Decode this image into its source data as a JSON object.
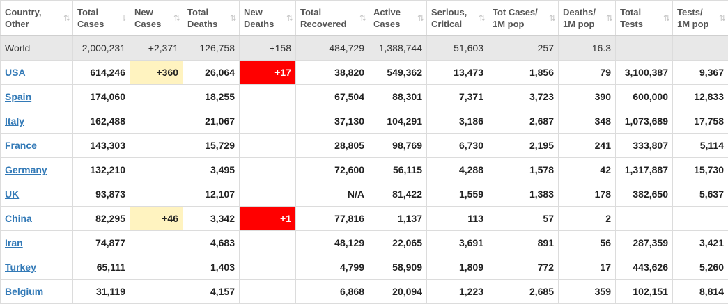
{
  "headers": [
    {
      "line1": "Country,",
      "line2": "Other",
      "sort": "⇅"
    },
    {
      "line1": "Total",
      "line2": "Cases",
      "sort": "⇂"
    },
    {
      "line1": "New",
      "line2": "Cases",
      "sort": "⇅"
    },
    {
      "line1": "Total",
      "line2": "Deaths",
      "sort": "⇅"
    },
    {
      "line1": "New",
      "line2": "Deaths",
      "sort": "⇅"
    },
    {
      "line1": "Total",
      "line2": "Recovered",
      "sort": "⇅"
    },
    {
      "line1": "Active",
      "line2": "Cases",
      "sort": "⇅"
    },
    {
      "line1": "Serious,",
      "line2": "Critical",
      "sort": "⇅"
    },
    {
      "line1": "Tot Cases/",
      "line2": "1M pop",
      "sort": "⇅"
    },
    {
      "line1": "Deaths/",
      "line2": "1M pop",
      "sort": "⇅"
    },
    {
      "line1": "Total",
      "line2": "Tests",
      "sort": "⇅"
    },
    {
      "line1": "Tests/",
      "line2": "1M pop",
      "sort": "⇅"
    }
  ],
  "world": {
    "country": "World",
    "total_cases": "2,000,231",
    "new_cases": "+2,371",
    "total_deaths": "126,758",
    "new_deaths": "+158",
    "total_recovered": "484,729",
    "active_cases": "1,388,744",
    "serious": "51,603",
    "cases_per_1m": "257",
    "deaths_per_1m": "16.3",
    "total_tests": "",
    "tests_per_1m": ""
  },
  "rows": [
    {
      "country": "USA",
      "total_cases": "614,246",
      "new_cases": "+360",
      "total_deaths": "26,064",
      "new_deaths": "+17",
      "total_recovered": "38,820",
      "active_cases": "549,362",
      "serious": "13,473",
      "cases_per_1m": "1,856",
      "deaths_per_1m": "79",
      "total_tests": "3,100,387",
      "tests_per_1m": "9,367"
    },
    {
      "country": "Spain",
      "total_cases": "174,060",
      "new_cases": "",
      "total_deaths": "18,255",
      "new_deaths": "",
      "total_recovered": "67,504",
      "active_cases": "88,301",
      "serious": "7,371",
      "cases_per_1m": "3,723",
      "deaths_per_1m": "390",
      "total_tests": "600,000",
      "tests_per_1m": "12,833"
    },
    {
      "country": "Italy",
      "total_cases": "162,488",
      "new_cases": "",
      "total_deaths": "21,067",
      "new_deaths": "",
      "total_recovered": "37,130",
      "active_cases": "104,291",
      "serious": "3,186",
      "cases_per_1m": "2,687",
      "deaths_per_1m": "348",
      "total_tests": "1,073,689",
      "tests_per_1m": "17,758"
    },
    {
      "country": "France",
      "total_cases": "143,303",
      "new_cases": "",
      "total_deaths": "15,729",
      "new_deaths": "",
      "total_recovered": "28,805",
      "active_cases": "98,769",
      "serious": "6,730",
      "cases_per_1m": "2,195",
      "deaths_per_1m": "241",
      "total_tests": "333,807",
      "tests_per_1m": "5,114"
    },
    {
      "country": "Germany",
      "total_cases": "132,210",
      "new_cases": "",
      "total_deaths": "3,495",
      "new_deaths": "",
      "total_recovered": "72,600",
      "active_cases": "56,115",
      "serious": "4,288",
      "cases_per_1m": "1,578",
      "deaths_per_1m": "42",
      "total_tests": "1,317,887",
      "tests_per_1m": "15,730"
    },
    {
      "country": "UK",
      "total_cases": "93,873",
      "new_cases": "",
      "total_deaths": "12,107",
      "new_deaths": "",
      "total_recovered": "N/A",
      "active_cases": "81,422",
      "serious": "1,559",
      "cases_per_1m": "1,383",
      "deaths_per_1m": "178",
      "total_tests": "382,650",
      "tests_per_1m": "5,637"
    },
    {
      "country": "China",
      "total_cases": "82,295",
      "new_cases": "+46",
      "total_deaths": "3,342",
      "new_deaths": "+1",
      "total_recovered": "77,816",
      "active_cases": "1,137",
      "serious": "113",
      "cases_per_1m": "57",
      "deaths_per_1m": "2",
      "total_tests": "",
      "tests_per_1m": ""
    },
    {
      "country": "Iran",
      "total_cases": "74,877",
      "new_cases": "",
      "total_deaths": "4,683",
      "new_deaths": "",
      "total_recovered": "48,129",
      "active_cases": "22,065",
      "serious": "3,691",
      "cases_per_1m": "891",
      "deaths_per_1m": "56",
      "total_tests": "287,359",
      "tests_per_1m": "3,421"
    },
    {
      "country": "Turkey",
      "total_cases": "65,111",
      "new_cases": "",
      "total_deaths": "1,403",
      "new_deaths": "",
      "total_recovered": "4,799",
      "active_cases": "58,909",
      "serious": "1,809",
      "cases_per_1m": "772",
      "deaths_per_1m": "17",
      "total_tests": "443,626",
      "tests_per_1m": "5,260"
    },
    {
      "country": "Belgium",
      "total_cases": "31,119",
      "new_cases": "",
      "total_deaths": "4,157",
      "new_deaths": "",
      "total_recovered": "6,868",
      "active_cases": "20,094",
      "serious": "1,223",
      "cases_per_1m": "2,685",
      "deaths_per_1m": "359",
      "total_tests": "102,151",
      "tests_per_1m": "8,814"
    }
  ],
  "colors": {
    "new_cases_highlight": "#fff3c0",
    "new_deaths_highlight": "#ff0000",
    "link": "#337ab7",
    "world_row": "#e8e8e8"
  }
}
